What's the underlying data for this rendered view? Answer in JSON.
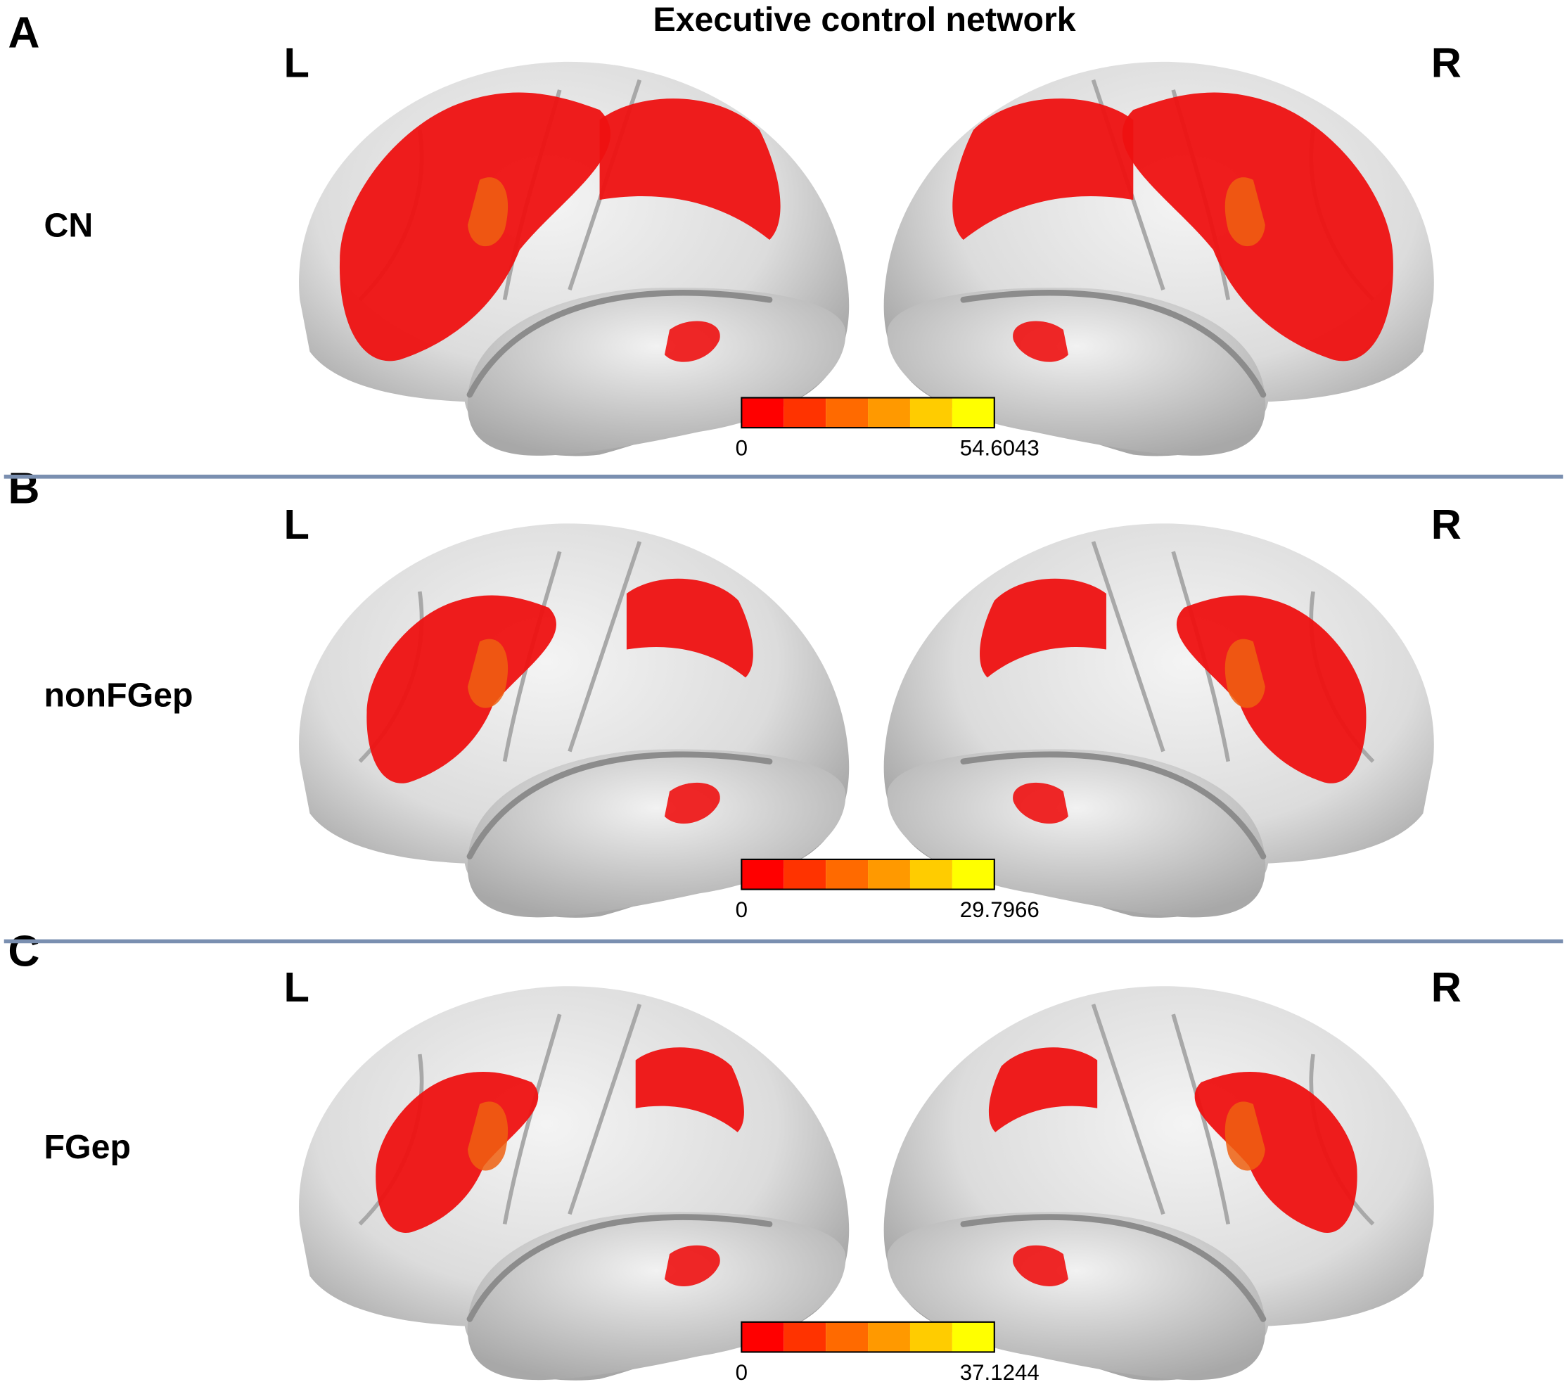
{
  "title": "Executive control network",
  "panels": [
    {
      "letter": "A",
      "group": "CN",
      "left_label": "L",
      "right_label": "R",
      "colorbar": {
        "min": 0,
        "max": 54.6043
      }
    },
    {
      "letter": "B",
      "group": "nonFGep",
      "left_label": "L",
      "right_label": "R",
      "colorbar": {
        "min": 0,
        "max": 29.7966
      }
    },
    {
      "letter": "C",
      "group": "FGep",
      "left_label": "L",
      "right_label": "R",
      "colorbar": {
        "min": 0,
        "max": 37.1244
      }
    }
  ]
}
